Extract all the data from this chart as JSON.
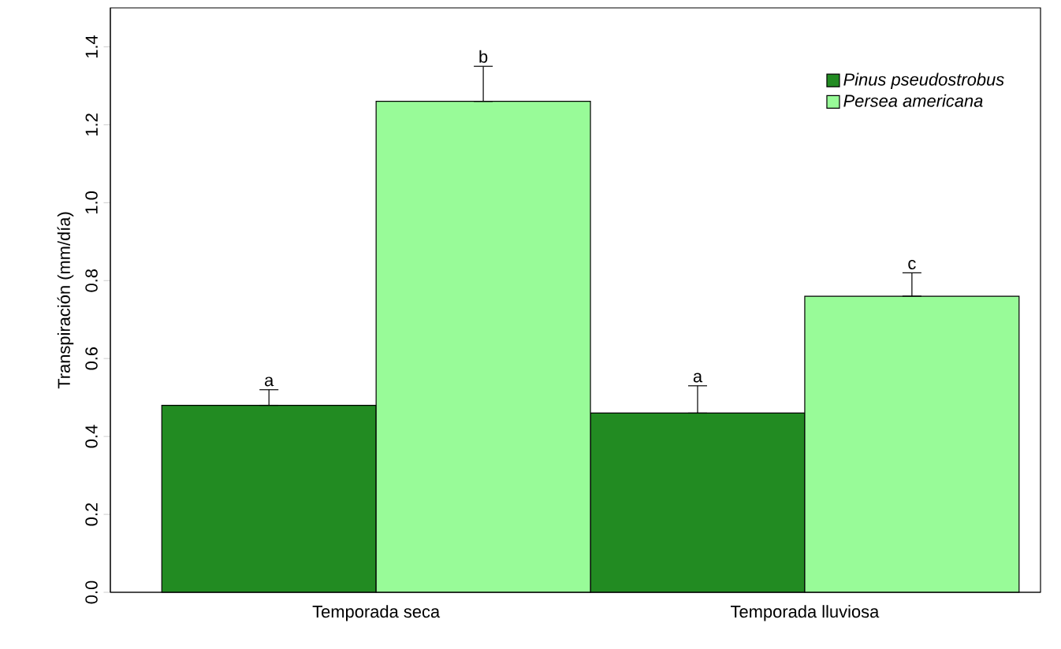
{
  "chart_data": {
    "type": "bar",
    "ylabel": "Transpiración (mm/día)",
    "categories": [
      "Temporada seca",
      "Temporada lluviosa"
    ],
    "series": [
      {
        "name": "Pinus pseudostrobus",
        "color": "#228b22",
        "values": [
          0.48,
          0.46
        ],
        "errors": [
          [
            0.48,
            0.52
          ],
          [
            0.46,
            0.53
          ]
        ]
      },
      {
        "name": "Persea americana",
        "color": "#98fb98",
        "values": [
          1.26,
          0.76
        ],
        "errors": [
          [
            1.26,
            1.35
          ],
          [
            0.76,
            0.82
          ]
        ]
      }
    ],
    "ylim": [
      0,
      1.5
    ],
    "yticks": [
      {
        "value": 0,
        "label": "0.0"
      },
      0.2,
      0.4,
      0.6,
      0.8,
      {
        "value": 1,
        "label": "1.0"
      },
      1.2,
      1.4
    ],
    "annotations": [
      "a",
      "b",
      "a",
      "c"
    ],
    "legend": "top right"
  }
}
